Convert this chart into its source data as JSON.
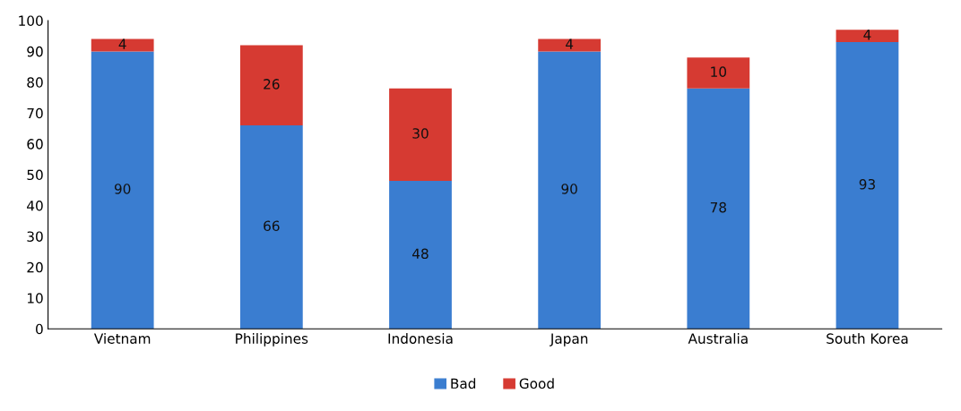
{
  "chart_data": {
    "type": "bar",
    "stacked": true,
    "categories": [
      "Vietnam",
      "Philippines",
      "Indonesia",
      "Japan",
      "Australia",
      "South Korea"
    ],
    "series": [
      {
        "name": "Bad",
        "color": "#3a7dd0",
        "values": [
          90,
          66,
          48,
          90,
          78,
          93
        ]
      },
      {
        "name": "Good",
        "color": "#d63a32",
        "values": [
          4,
          26,
          30,
          4,
          10,
          4
        ]
      }
    ],
    "ylim": [
      0,
      100
    ],
    "yticks": [
      0,
      10,
      20,
      30,
      40,
      50,
      60,
      70,
      80,
      90,
      100
    ],
    "grid": false,
    "legend": "bottom",
    "data_labels": true
  }
}
